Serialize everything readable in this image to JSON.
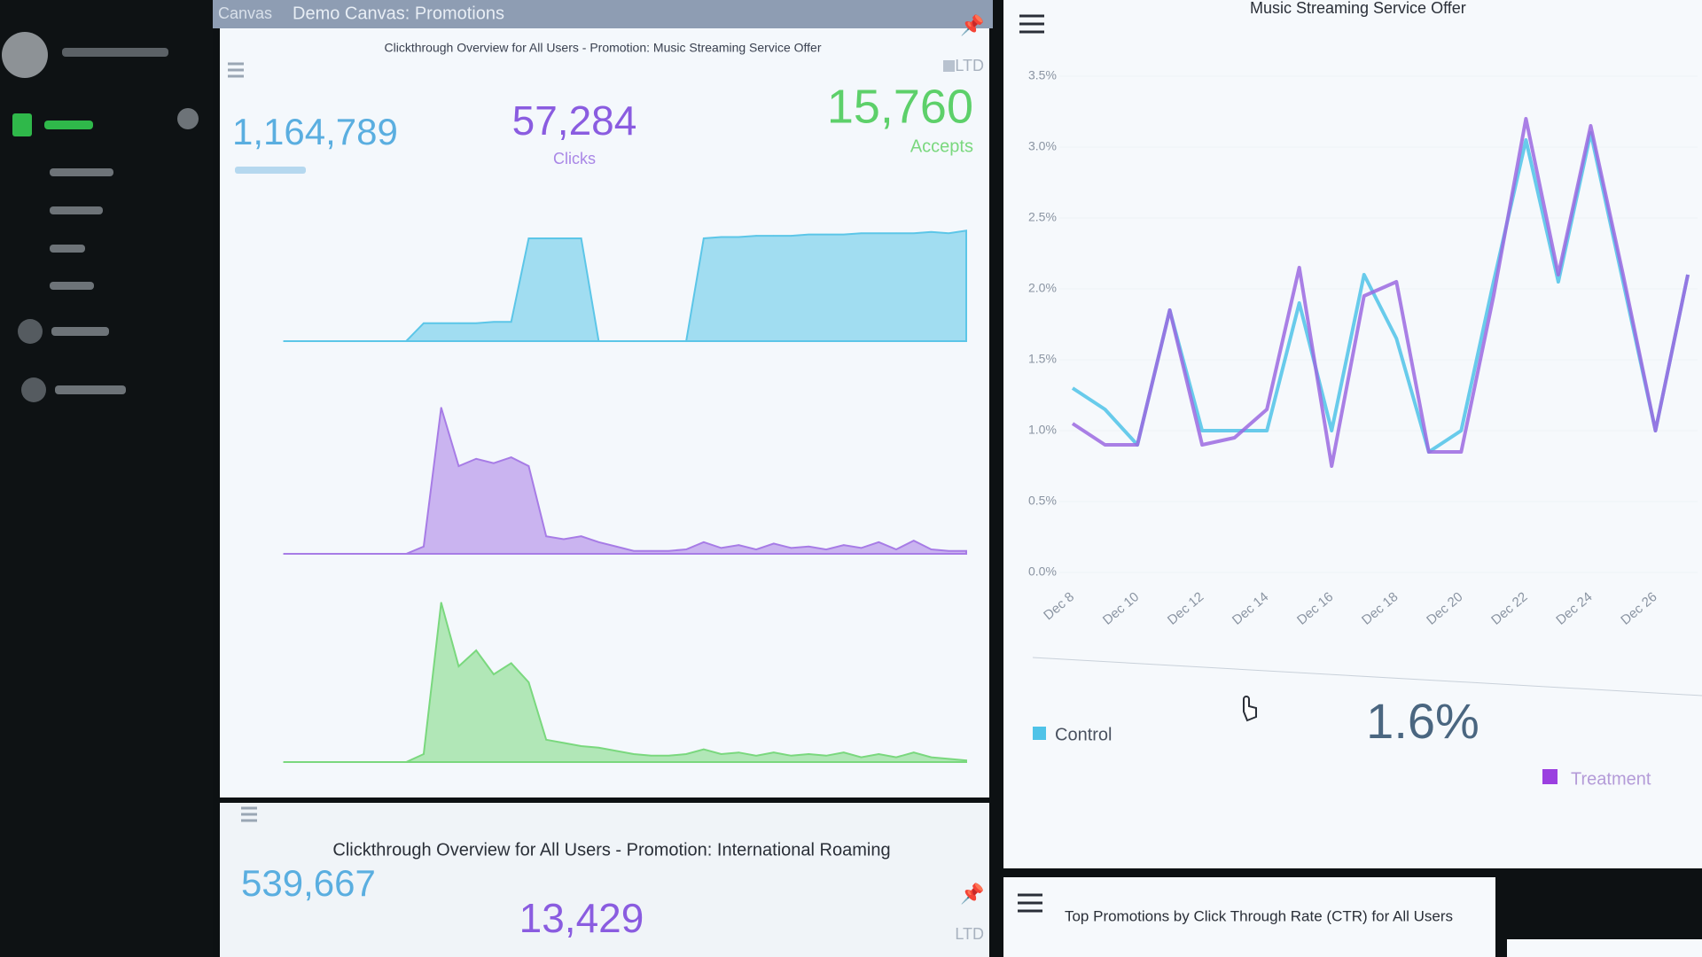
{
  "header": {
    "section": "Canvas",
    "title": "Demo Canvas: Promotions"
  },
  "panels": [
    {
      "title": "Clickthrough Overview for All Users - Promotion: Music Streaming Service Offer",
      "badge": "LTD",
      "metrics": [
        {
          "value": "1,164,789"
        },
        {
          "value": "57,284",
          "label": "Clicks"
        },
        {
          "value": "15,760",
          "label": "Accepts"
        }
      ]
    },
    {
      "title": "Music Streaming Service Offer",
      "legend": [
        "Control",
        "Treatment"
      ],
      "highlight": "1.6%"
    },
    {
      "title": "Clickthrough Overview for All Users - Promotion: International Roaming",
      "badge": "LTD",
      "metrics": [
        {
          "value": "539,667"
        },
        {
          "value": "13,429"
        }
      ]
    },
    {
      "title": "Top Promotions by Click Through Rate (CTR) for All Users"
    }
  ],
  "chart_data": [
    {
      "type": "area",
      "color": "#5cc6e8",
      "ylim": [
        0,
        100
      ],
      "values": [
        0,
        0,
        0,
        0,
        0,
        0,
        0,
        0,
        14,
        14,
        14,
        14,
        15,
        15,
        80,
        80,
        80,
        80,
        0,
        0,
        0,
        0,
        0,
        0,
        80,
        81,
        81,
        82,
        82,
        82,
        83,
        83,
        83,
        84,
        84,
        84,
        84,
        85,
        84,
        86
      ]
    },
    {
      "type": "area",
      "color": "#a77ce6",
      "ylim": [
        0,
        100
      ],
      "values": [
        0,
        0,
        0,
        0,
        0,
        0,
        0,
        0,
        5,
        100,
        60,
        65,
        62,
        66,
        60,
        12,
        10,
        12,
        8,
        5,
        2,
        2,
        2,
        3,
        8,
        4,
        6,
        3,
        7,
        4,
        5,
        3,
        6,
        4,
        8,
        3,
        9,
        3,
        2,
        2
      ]
    },
    {
      "type": "area",
      "color": "#7ad87e",
      "ylim": [
        0,
        100
      ],
      "values": [
        0,
        0,
        0,
        0,
        0,
        0,
        0,
        0,
        5,
        100,
        60,
        70,
        55,
        62,
        50,
        14,
        12,
        10,
        9,
        7,
        5,
        4,
        4,
        5,
        8,
        5,
        6,
        4,
        6,
        4,
        5,
        4,
        6,
        3,
        5,
        3,
        6,
        3,
        2,
        1
      ]
    },
    {
      "type": "line",
      "ylim": [
        0,
        3.5
      ],
      "yticks": [
        {
          "value": 0,
          "label": "0.0%"
        },
        {
          "value": 0.5,
          "label": "0.5%"
        },
        {
          "value": 1,
          "label": "1.0%"
        },
        {
          "value": 1.5,
          "label": "1.5%"
        },
        {
          "value": 2,
          "label": "2.0%"
        },
        {
          "value": 2.5,
          "label": "2.5%"
        },
        {
          "value": 3,
          "label": "3.0%"
        },
        {
          "value": 3.5,
          "label": "3.5%"
        }
      ],
      "categories": [
        "Dec 8",
        null,
        "Dec 10",
        null,
        "Dec 12",
        null,
        "Dec 14",
        null,
        "Dec 16",
        null,
        "Dec 18",
        null,
        "Dec 20",
        null,
        "Dec 22",
        null,
        "Dec 24",
        null,
        "Dec 26",
        null
      ],
      "series": [
        {
          "name": "Control",
          "color": "#4fc3e8",
          "values": [
            1.3,
            1.15,
            0.9,
            1.85,
            1.0,
            1.0,
            1.0,
            1.9,
            1.0,
            2.1,
            1.65,
            0.85,
            1.0,
            2.05,
            3.05,
            2.05,
            3.1,
            2.05,
            1.0,
            2.1
          ]
        },
        {
          "name": "Treatment",
          "color": "#9b6ae0",
          "values": [
            1.05,
            0.9,
            0.9,
            1.85,
            0.9,
            0.95,
            1.15,
            2.15,
            0.75,
            1.95,
            2.05,
            0.85,
            0.85,
            1.95,
            3.2,
            2.1,
            3.15,
            2.1,
            1.0,
            2.1
          ]
        }
      ]
    }
  ]
}
